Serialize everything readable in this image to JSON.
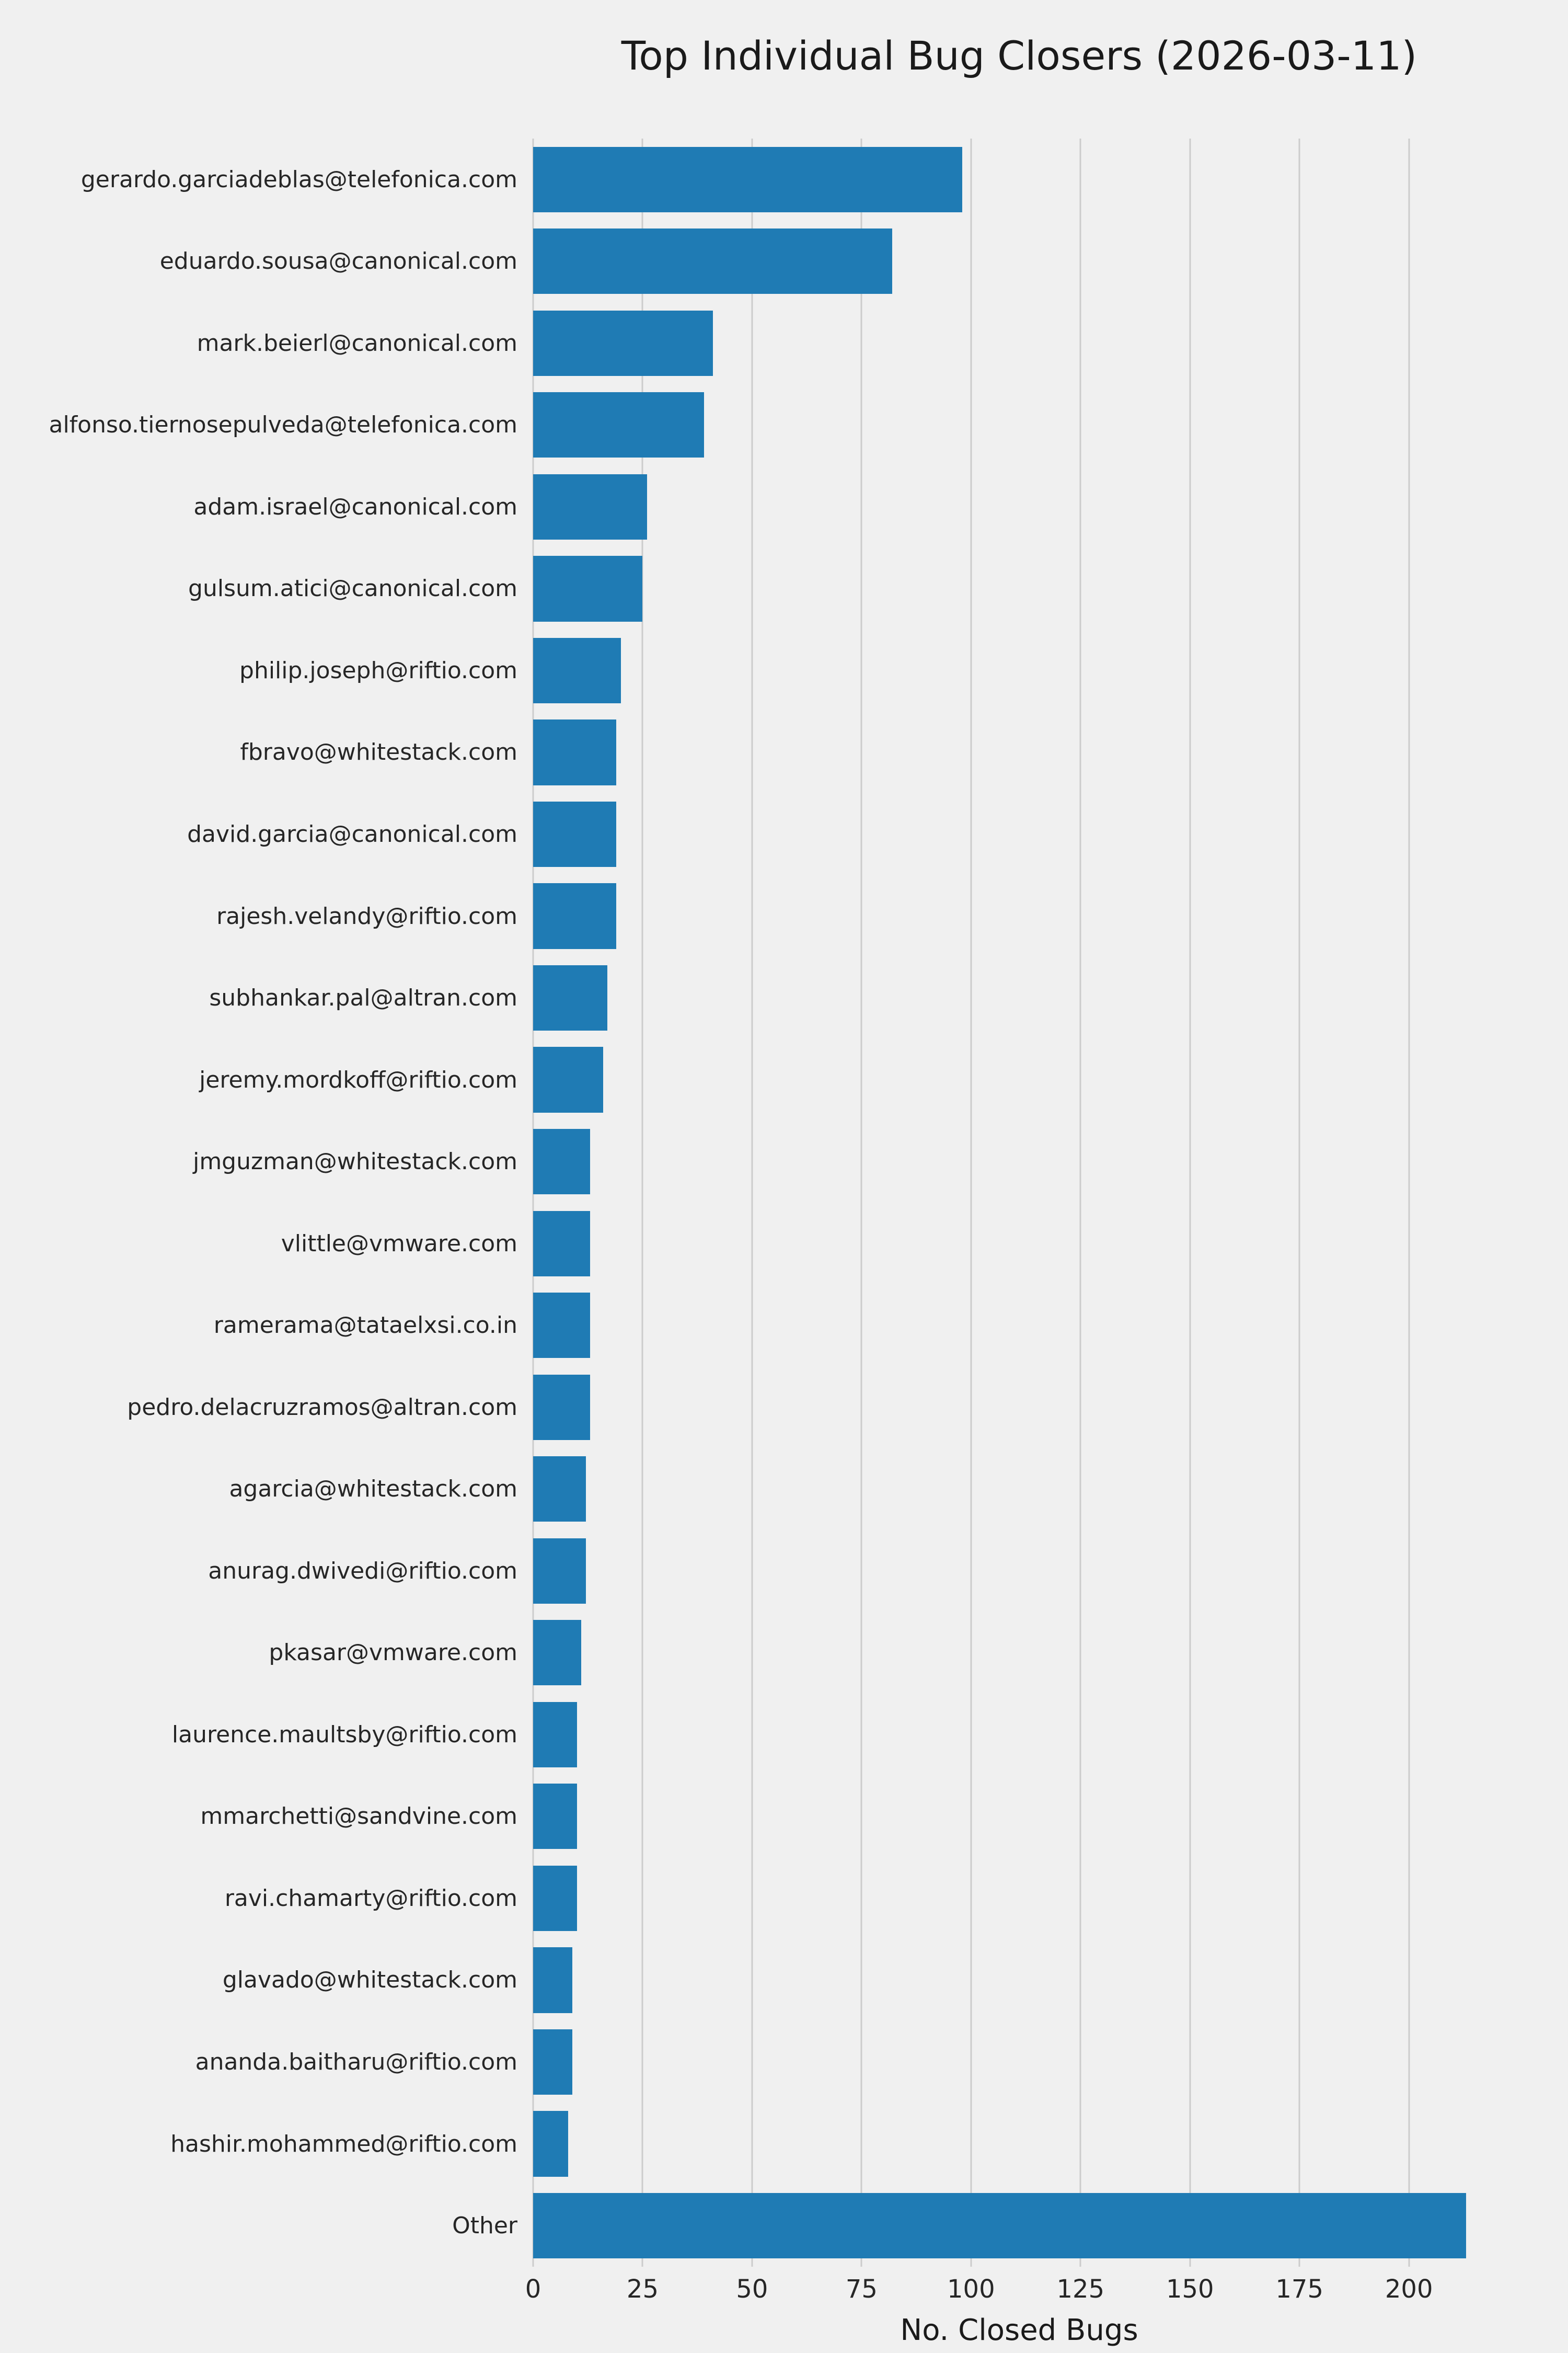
{
  "chart_data": {
    "type": "bar",
    "orientation": "horizontal",
    "title": "Top Individual Bug Closers (2026-03-11)",
    "xlabel": "No. Closed Bugs",
    "ylabel": "",
    "xlim": [
      0,
      222
    ],
    "xticks": [
      0,
      25,
      50,
      75,
      100,
      125,
      150,
      175,
      200
    ],
    "grid": true,
    "legend": false,
    "bar_color": "#1f7bb4",
    "background_color": "#f0f0f0",
    "gridline_color": "#cccccc",
    "categories": [
      "gerardo.garciadeblas@telefonica.com",
      "eduardo.sousa@canonical.com",
      "mark.beierl@canonical.com",
      "alfonso.tiernosepulveda@telefonica.com",
      "adam.israel@canonical.com",
      "gulsum.atici@canonical.com",
      "philip.joseph@riftio.com",
      "fbravo@whitestack.com",
      "david.garcia@canonical.com",
      "rajesh.velandy@riftio.com",
      "subhankar.pal@altran.com",
      "jeremy.mordkoff@riftio.com",
      "jmguzman@whitestack.com",
      "vlittle@vmware.com",
      "ramerama@tataelxsi.co.in",
      "pedro.delacruzramos@altran.com",
      "agarcia@whitestack.com",
      "anurag.dwivedi@riftio.com",
      "pkasar@vmware.com",
      "laurence.maultsby@riftio.com",
      "mmarchetti@sandvine.com",
      "ravi.chamarty@riftio.com",
      "glavado@whitestack.com",
      "ananda.baitharu@riftio.com",
      "hashir.mohammed@riftio.com",
      "Other"
    ],
    "values": [
      98,
      82,
      41,
      39,
      26,
      25,
      20,
      19,
      19,
      19,
      17,
      16,
      13,
      13,
      13,
      13,
      12,
      12,
      11,
      10,
      10,
      10,
      9,
      9,
      8,
      213
    ]
  }
}
